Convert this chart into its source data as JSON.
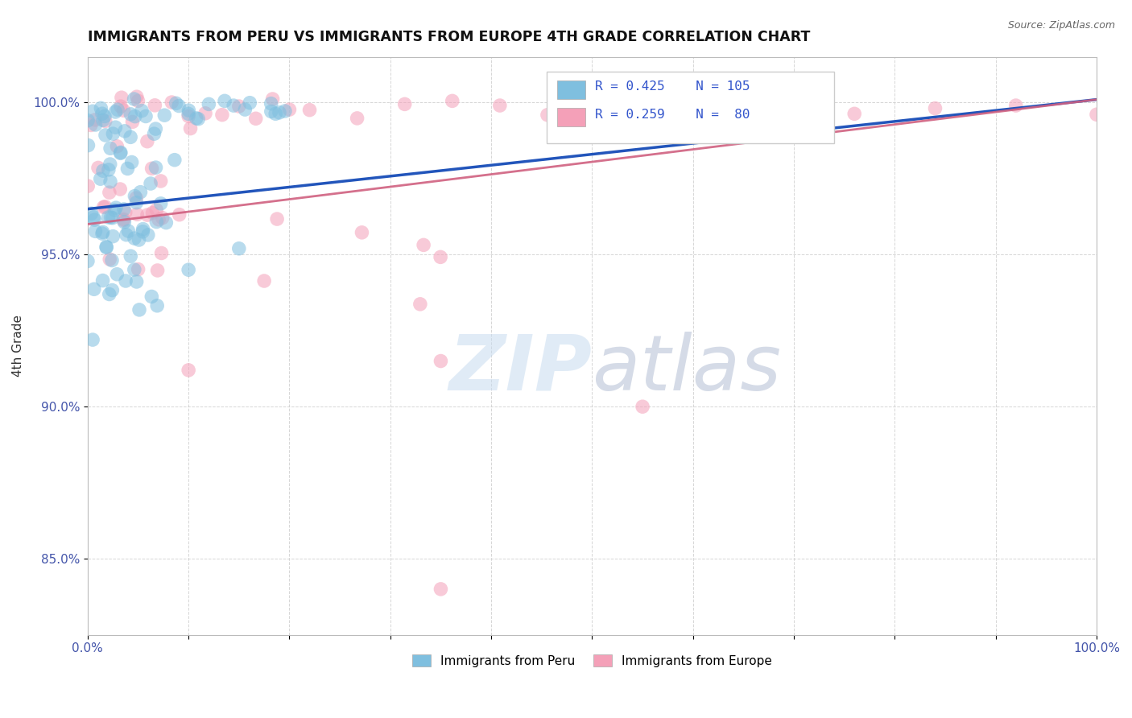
{
  "title": "IMMIGRANTS FROM PERU VS IMMIGRANTS FROM EUROPE 4TH GRADE CORRELATION CHART",
  "source": "Source: ZipAtlas.com",
  "ylabel": "4th Grade",
  "color_peru": "#7fbfdf",
  "color_europe": "#f4a0b8",
  "color_peru_line": "#2255bb",
  "color_europe_line": "#d06080",
  "legend_r1": "R = 0.425",
  "legend_n1": "N = 105",
  "legend_r2": "R = 0.259",
  "legend_n2": "N =  80",
  "bg_color": "#ffffff",
  "grid_color": "#cccccc",
  "watermark_text": "ZIPatlas",
  "watermark_color": "#c8dcf0"
}
